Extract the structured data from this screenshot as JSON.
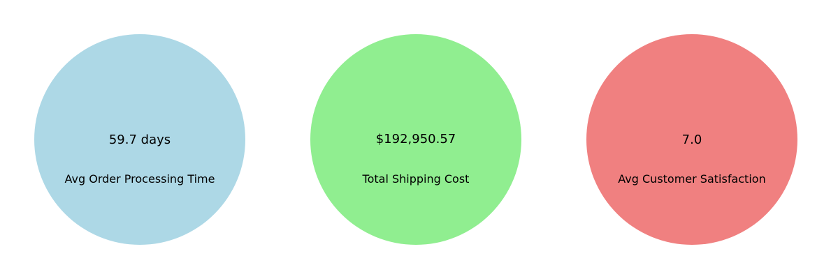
{
  "chart_data": {
    "type": "pie",
    "grid": false,
    "legend": "none",
    "kpis": [
      {
        "label": "Avg Order Processing Time",
        "display": "59.7 days",
        "value": 59.7,
        "unit": "days",
        "color": "#add8e6"
      },
      {
        "label": "Total Shipping Cost",
        "display": "$192,950.57",
        "value": 192950.57,
        "unit": "$",
        "color": "#90ee90"
      },
      {
        "label": "Avg Customer Satisfaction",
        "display": "7.0",
        "value": 7.0,
        "unit": "",
        "color": "#f08080"
      }
    ]
  }
}
